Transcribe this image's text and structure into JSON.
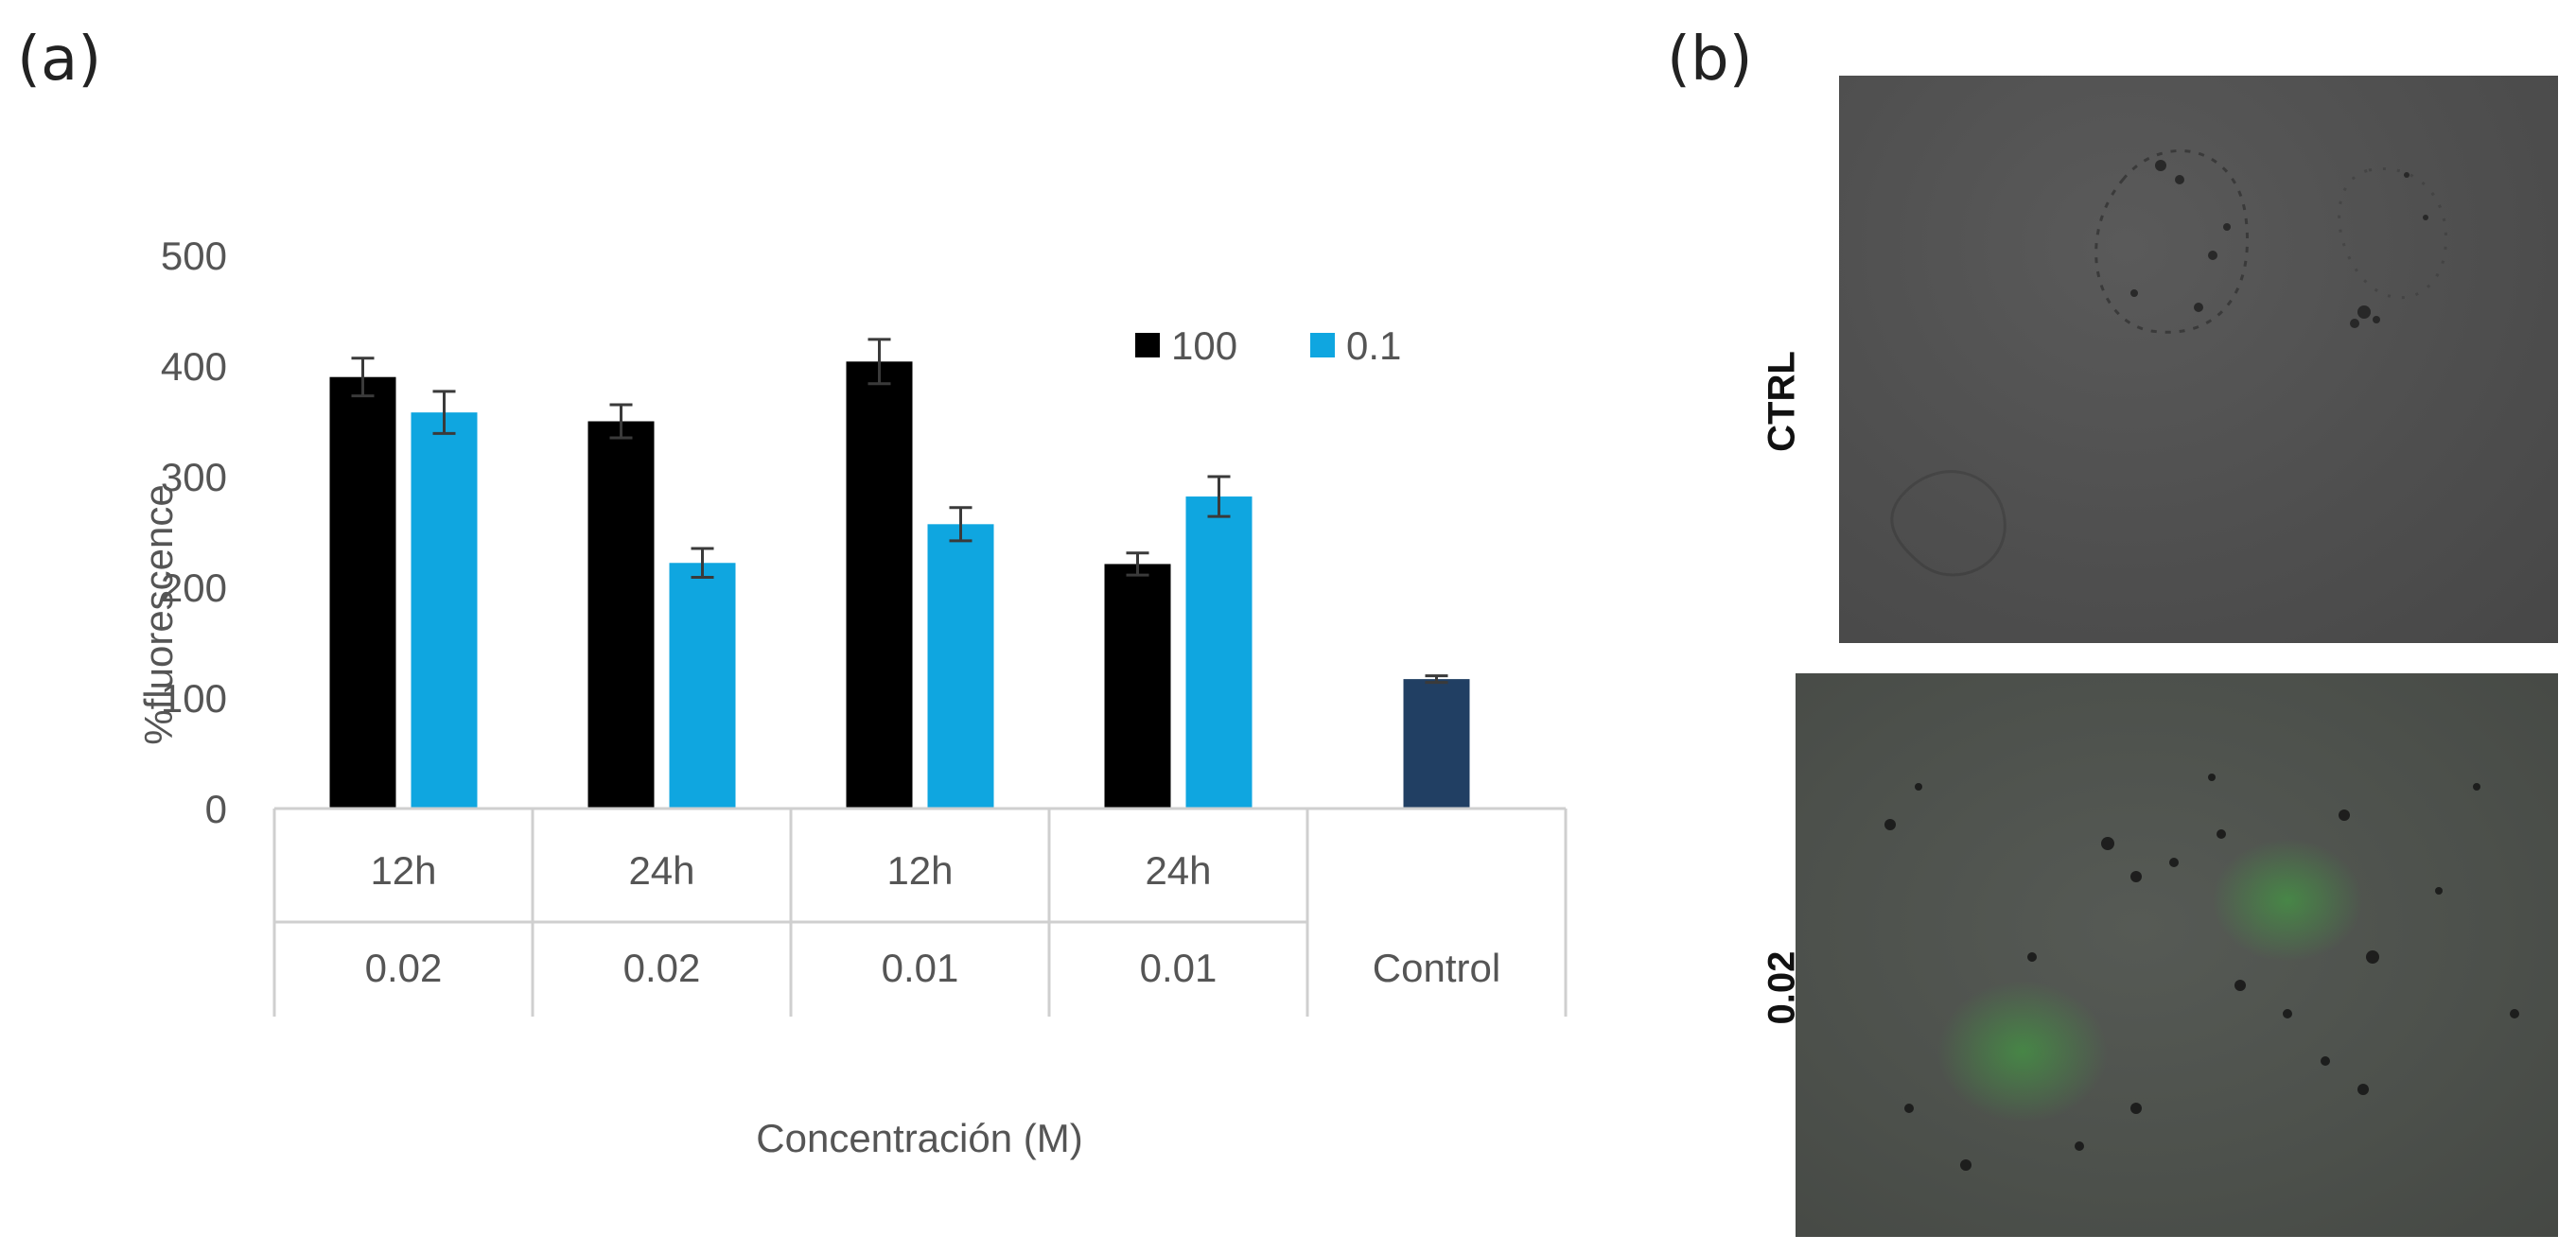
{
  "panels": {
    "a_label": "(a)",
    "b_label": "(b)"
  },
  "chart_data": {
    "type": "bar",
    "title": "",
    "xlabel": "Concentración (M)",
    "ylabel": "%fluorescence",
    "ylim": [
      0,
      500
    ],
    "yticks": [
      0,
      100,
      200,
      300,
      400,
      500
    ],
    "grid": false,
    "legend_position": "top-right",
    "groups": [
      {
        "time": "12h",
        "conc": "0.02"
      },
      {
        "time": "24h",
        "conc": "0.02"
      },
      {
        "time": "12h",
        "conc": "0.01"
      },
      {
        "time": "24h",
        "conc": "0.01"
      },
      {
        "time": "",
        "conc": "Control"
      }
    ],
    "series": [
      {
        "name": "100",
        "color": "#000000",
        "values": [
          390,
          350,
          404,
          221,
          null
        ],
        "errors": [
          17,
          15,
          20,
          10,
          null
        ]
      },
      {
        "name": "0.1",
        "color": "#0fa6e0",
        "values": [
          358,
          222,
          257,
          282,
          null
        ],
        "errors": [
          19,
          13,
          15,
          18,
          null
        ]
      },
      {
        "name": "Control",
        "color": "#213f63",
        "show_in_legend": false,
        "values": [
          null,
          null,
          null,
          null,
          117
        ],
        "errors": [
          null,
          null,
          null,
          null,
          3
        ]
      }
    ]
  },
  "micrographs": [
    {
      "label": "CTRL"
    },
    {
      "label": "0.02"
    }
  ]
}
